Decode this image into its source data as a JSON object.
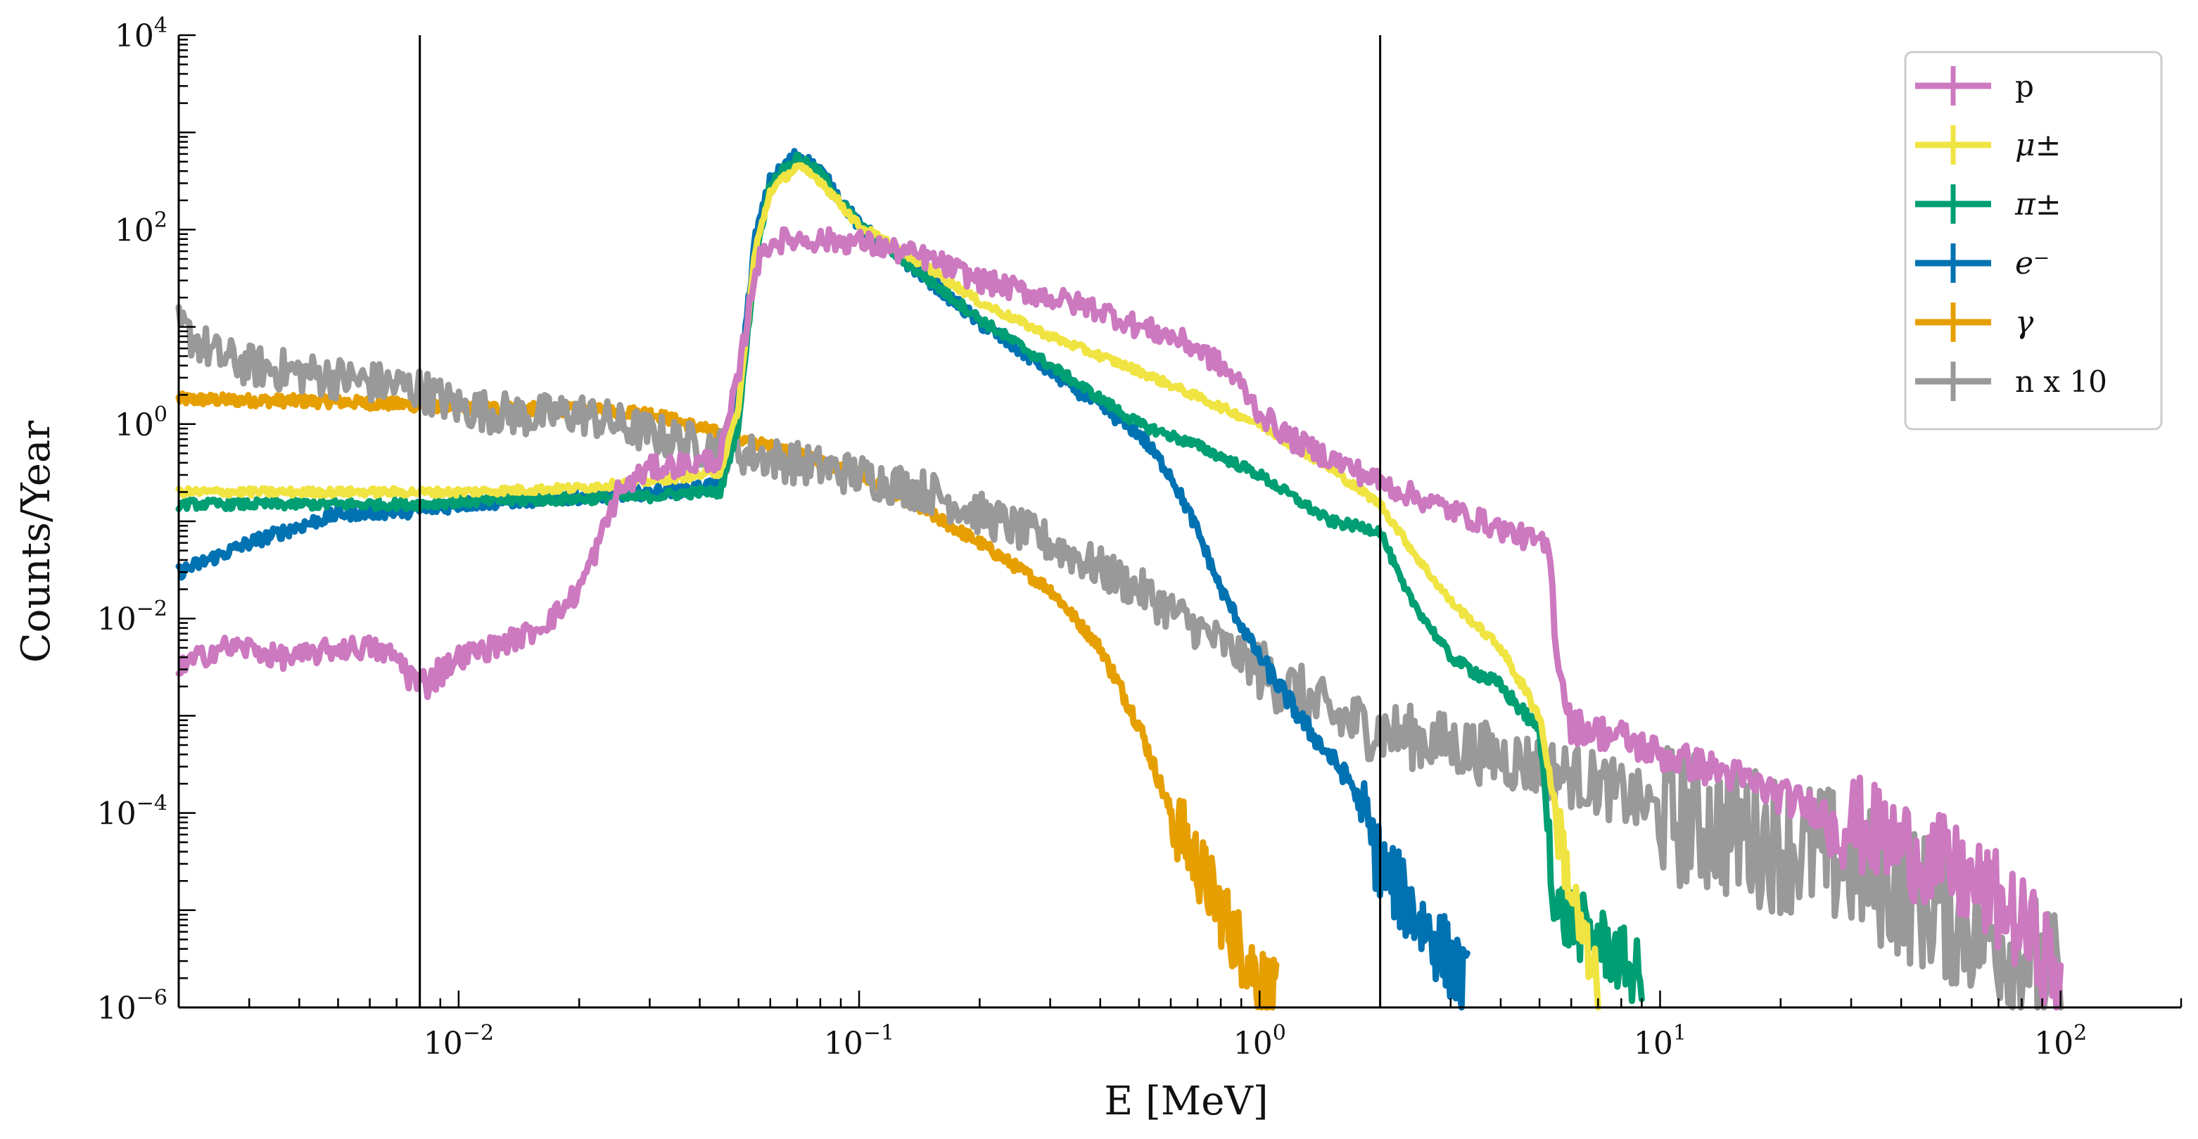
{
  "chart_data": {
    "type": "line",
    "title": "",
    "xlabel": "E [MeV]",
    "ylabel": "Counts/Year",
    "xscale": "log",
    "yscale": "log",
    "xlim": [
      0.002,
      200
    ],
    "ylim": [
      1e-06,
      10000
    ],
    "x_tick_labels": [
      {
        "value": 0.01,
        "base": "10",
        "exp": "−2"
      },
      {
        "value": 0.1,
        "base": "10",
        "exp": "−1"
      },
      {
        "value": 1,
        "base": "10",
        "exp": "0"
      },
      {
        "value": 10,
        "base": "10",
        "exp": "1"
      },
      {
        "value": 100,
        "base": "10",
        "exp": "2"
      }
    ],
    "y_tick_labels": [
      {
        "value": 1e-06,
        "base": "10",
        "exp": "−6"
      },
      {
        "value": 0.0001,
        "base": "10",
        "exp": "−4"
      },
      {
        "value": 0.01,
        "base": "10",
        "exp": "−2"
      },
      {
        "value": 1,
        "base": "10",
        "exp": "0"
      },
      {
        "value": 100,
        "base": "10",
        "exp": "2"
      },
      {
        "value": 10000,
        "base": "10",
        "exp": "4"
      }
    ],
    "vertical_lines": [
      0.008,
      2.0
    ],
    "legend_position": "top-right",
    "series": [
      {
        "name": "p",
        "label_style": "text",
        "color": "#cc79c0",
        "noise": 0.12,
        "points": [
          [
            0.002,
            0.003
          ],
          [
            0.0025,
            0.005
          ],
          [
            0.003,
            0.005
          ],
          [
            0.0035,
            0.004
          ],
          [
            0.004,
            0.004
          ],
          [
            0.005,
            0.005
          ],
          [
            0.006,
            0.005
          ],
          [
            0.007,
            0.004
          ],
          [
            0.008,
            0.002
          ],
          [
            0.01,
            0.004
          ],
          [
            0.012,
            0.005
          ],
          [
            0.015,
            0.007
          ],
          [
            0.018,
            0.012
          ],
          [
            0.02,
            0.02
          ],
          [
            0.022,
            0.05
          ],
          [
            0.025,
            0.2
          ],
          [
            0.03,
            0.35
          ],
          [
            0.04,
            0.4
          ],
          [
            0.045,
            0.45
          ],
          [
            0.05,
            3
          ],
          [
            0.055,
            40
          ],
          [
            0.06,
            75
          ],
          [
            0.07,
            80
          ],
          [
            0.1,
            75
          ],
          [
            0.15,
            50
          ],
          [
            0.2,
            30
          ],
          [
            0.3,
            20
          ],
          [
            0.4,
            15
          ],
          [
            0.5,
            10
          ],
          [
            0.6,
            8
          ],
          [
            0.7,
            6
          ],
          [
            0.8,
            4
          ],
          [
            0.9,
            2.5
          ],
          [
            1.0,
            1.3
          ],
          [
            1.2,
            0.7
          ],
          [
            1.5,
            0.45
          ],
          [
            2,
            0.25
          ],
          [
            3,
            0.13
          ],
          [
            5,
            0.06
          ],
          [
            5.3,
            0.05
          ],
          [
            5.5,
            0.005
          ],
          [
            6,
            0.0008
          ],
          [
            8,
            0.0006
          ],
          [
            10,
            0.0004
          ],
          [
            15,
            0.00025
          ],
          [
            20,
            0.00015
          ],
          [
            30,
            8e-05
          ],
          [
            50,
            3e-05
          ],
          [
            70,
            1.2e-05
          ],
          [
            90,
            4e-06
          ],
          [
            100,
            1.5e-06
          ]
        ]
      },
      {
        "name": "μ±",
        "label_style": "math",
        "color": "#f0e442",
        "noise": 0.04,
        "points": [
          [
            0.002,
            0.2
          ],
          [
            0.008,
            0.2
          ],
          [
            0.01,
            0.2
          ],
          [
            0.02,
            0.22
          ],
          [
            0.03,
            0.26
          ],
          [
            0.04,
            0.3
          ],
          [
            0.045,
            0.32
          ],
          [
            0.05,
            1.5
          ],
          [
            0.055,
            60
          ],
          [
            0.06,
            250
          ],
          [
            0.07,
            450
          ],
          [
            0.08,
            320
          ],
          [
            0.1,
            110
          ],
          [
            0.15,
            40
          ],
          [
            0.2,
            18
          ],
          [
            0.3,
            8
          ],
          [
            0.5,
            3.5
          ],
          [
            1.0,
            1.0
          ],
          [
            1.5,
            0.35
          ],
          [
            2.0,
            0.15
          ],
          [
            2.5,
            0.04
          ],
          [
            3,
            0.015
          ],
          [
            4,
            0.005
          ],
          [
            5,
            0.001
          ],
          [
            5.5,
            0.0001
          ],
          [
            6,
            1.5e-05
          ],
          [
            6.5,
            4e-06
          ],
          [
            7,
            1.5e-06
          ]
        ]
      },
      {
        "name": "π±",
        "label_style": "math",
        "color": "#009e73",
        "noise": 0.05,
        "points": [
          [
            0.002,
            0.15
          ],
          [
            0.008,
            0.15
          ],
          [
            0.01,
            0.16
          ],
          [
            0.02,
            0.17
          ],
          [
            0.03,
            0.18
          ],
          [
            0.04,
            0.2
          ],
          [
            0.045,
            0.2
          ],
          [
            0.05,
            1
          ],
          [
            0.055,
            50
          ],
          [
            0.06,
            300
          ],
          [
            0.07,
            550
          ],
          [
            0.08,
            380
          ],
          [
            0.1,
            110
          ],
          [
            0.15,
            30
          ],
          [
            0.2,
            12
          ],
          [
            0.3,
            4
          ],
          [
            0.5,
            1.0
          ],
          [
            0.7,
            0.6
          ],
          [
            1.0,
            0.3
          ],
          [
            1.5,
            0.1
          ],
          [
            2.0,
            0.08
          ],
          [
            2.3,
            0.02
          ],
          [
            3,
            0.004
          ],
          [
            4,
            0.002
          ],
          [
            5,
            0.0007
          ],
          [
            5.5,
            1e-05
          ],
          [
            7,
            5e-06
          ],
          [
            9,
            2e-06
          ]
        ]
      },
      {
        "name": "e⁻",
        "label_style": "math",
        "color": "#0072b2",
        "noise": 0.07,
        "points": [
          [
            0.002,
            0.03
          ],
          [
            0.003,
            0.06
          ],
          [
            0.005,
            0.12
          ],
          [
            0.008,
            0.13
          ],
          [
            0.01,
            0.15
          ],
          [
            0.02,
            0.18
          ],
          [
            0.03,
            0.2
          ],
          [
            0.04,
            0.22
          ],
          [
            0.045,
            0.25
          ],
          [
            0.05,
            2
          ],
          [
            0.055,
            80
          ],
          [
            0.06,
            320
          ],
          [
            0.07,
            600
          ],
          [
            0.08,
            400
          ],
          [
            0.1,
            110
          ],
          [
            0.15,
            30
          ],
          [
            0.2,
            11
          ],
          [
            0.3,
            3.5
          ],
          [
            0.5,
            0.8
          ],
          [
            0.6,
            0.3
          ],
          [
            0.7,
            0.08
          ],
          [
            0.8,
            0.02
          ],
          [
            1.0,
            0.004
          ],
          [
            1.3,
            0.0008
          ],
          [
            1.7,
            0.0002
          ],
          [
            2.0,
            3e-05
          ],
          [
            2.5,
            8e-06
          ],
          [
            3,
            3e-06
          ],
          [
            3.3,
            1.5e-06
          ]
        ]
      },
      {
        "name": "γ",
        "label_style": "math",
        "color": "#e69f00",
        "noise": 0.06,
        "points": [
          [
            0.002,
            1.8
          ],
          [
            0.005,
            1.7
          ],
          [
            0.01,
            1.5
          ],
          [
            0.02,
            1.4
          ],
          [
            0.03,
            1.3
          ],
          [
            0.05,
            0.7
          ],
          [
            0.07,
            0.5
          ],
          [
            0.1,
            0.3
          ],
          [
            0.15,
            0.12
          ],
          [
            0.2,
            0.06
          ],
          [
            0.3,
            0.02
          ],
          [
            0.4,
            0.005
          ],
          [
            0.5,
            0.0008
          ],
          [
            0.6,
            0.0001
          ],
          [
            0.7,
            3e-05
          ],
          [
            0.8,
            1e-05
          ],
          [
            0.9,
            4e-06
          ],
          [
            1.0,
            2e-06
          ],
          [
            1.1,
            1.2e-06
          ]
        ]
      },
      {
        "name": "n x 10",
        "label_style": "text",
        "color": "#999999",
        "noise": 0.22,
        "points": [
          [
            0.002,
            10
          ],
          [
            0.0025,
            5
          ],
          [
            0.003,
            4
          ],
          [
            0.005,
            3
          ],
          [
            0.008,
            2.3
          ],
          [
            0.01,
            1.5
          ],
          [
            0.015,
            1.2
          ],
          [
            0.02,
            1.3
          ],
          [
            0.03,
            0.8
          ],
          [
            0.04,
            0.6
          ],
          [
            0.06,
            0.45
          ],
          [
            0.1,
            0.3
          ],
          [
            0.15,
            0.2
          ],
          [
            0.2,
            0.12
          ],
          [
            0.3,
            0.06
          ],
          [
            0.5,
            0.02
          ],
          [
            0.7,
            0.008
          ],
          [
            1.0,
            0.003
          ],
          [
            1.5,
            0.001
          ],
          [
            2.0,
            0.0007
          ],
          [
            3,
            0.0005
          ],
          [
            5,
            0.0003
          ],
          [
            7,
            0.0002
          ],
          [
            10,
            0.0001
          ],
          [
            20,
            5e-05
          ],
          [
            30,
            3e-05
          ],
          [
            50,
            1e-05
          ],
          [
            80,
            4e-06
          ],
          [
            100,
            1.5e-06
          ]
        ]
      }
    ]
  }
}
